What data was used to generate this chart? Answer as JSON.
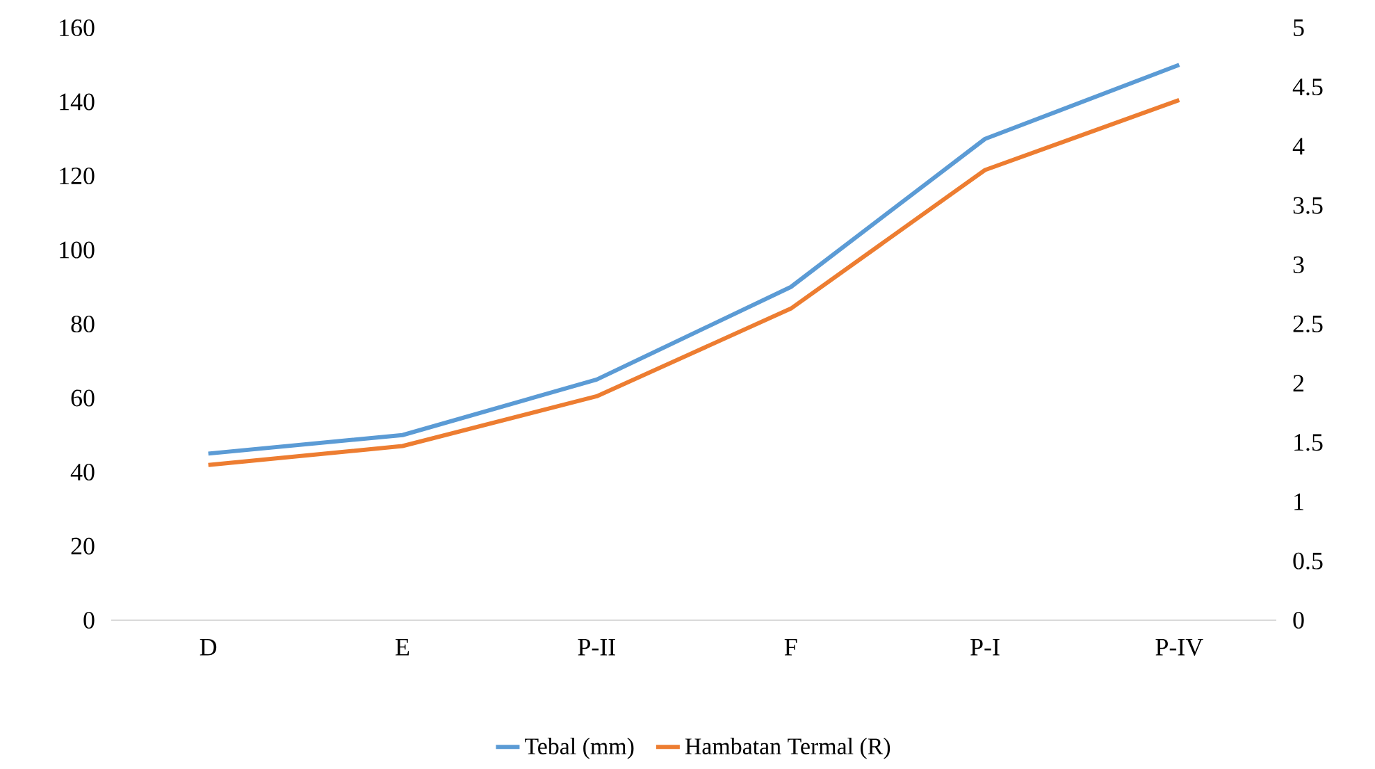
{
  "chart_data": {
    "type": "line",
    "categories": [
      "D",
      "E",
      "P-II",
      "F",
      "P-I",
      "P-IV"
    ],
    "series": [
      {
        "name": "Tebal (mm)",
        "color": "#5b9bd5",
        "values": [
          45,
          50,
          65,
          90,
          130,
          150
        ]
      },
      {
        "name": "Hambatan Termal (R)",
        "color": "#ed7d31",
        "values": [
          1.31,
          1.47,
          1.89,
          2.63,
          3.8,
          4.39
        ],
        "axis": "y2"
      }
    ],
    "ylim": [
      0,
      160
    ],
    "yticks": [
      0,
      20,
      40,
      60,
      80,
      100,
      120,
      140,
      160
    ],
    "y2lim": [
      0,
      5
    ],
    "y2ticks": [
      0,
      0.5,
      1,
      1.5,
      2,
      2.5,
      3,
      3.5,
      4,
      4.5,
      5
    ],
    "legend": "bottom"
  }
}
